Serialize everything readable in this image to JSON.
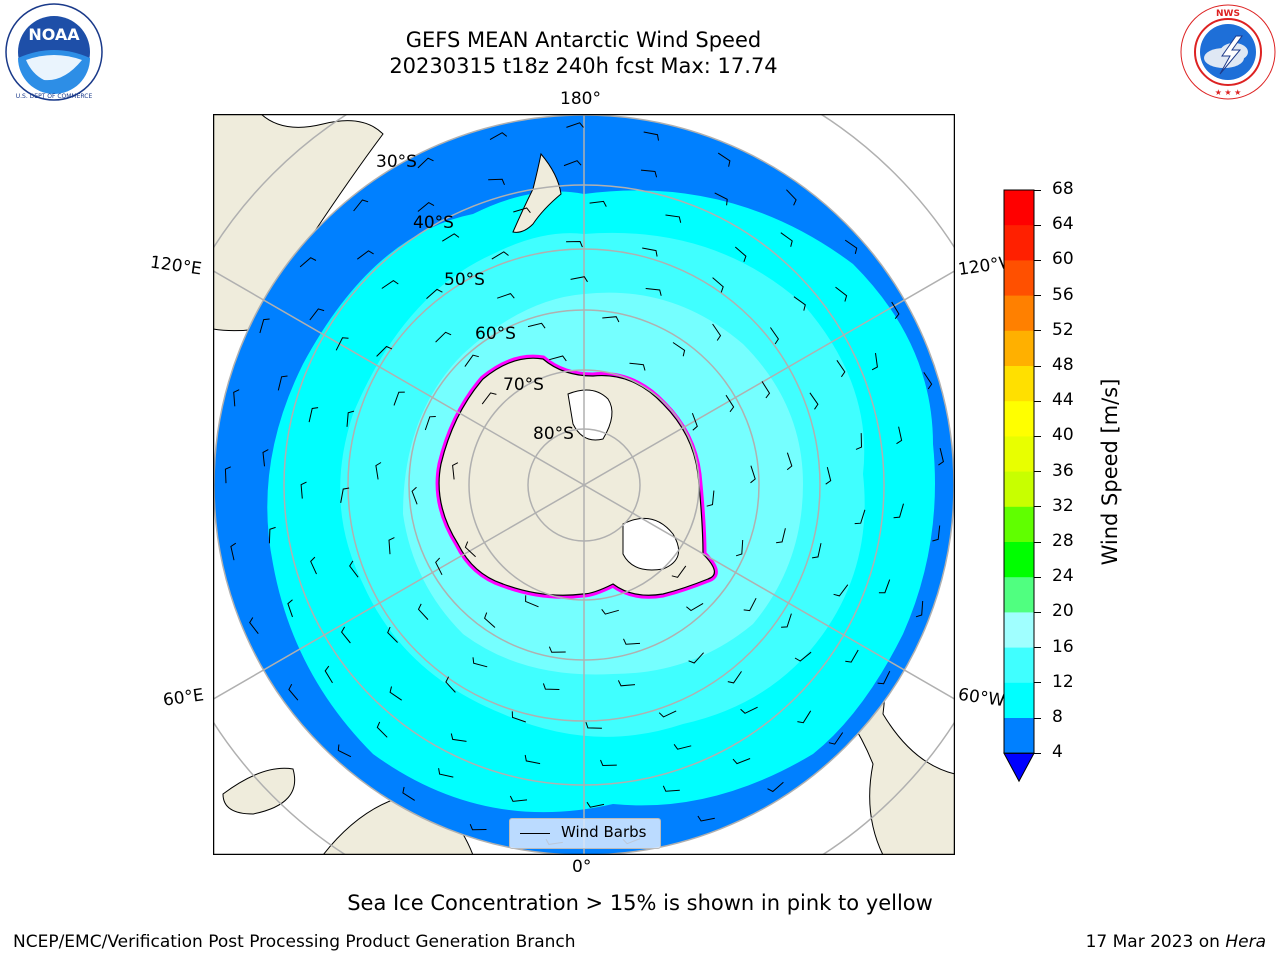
{
  "header": {
    "title_line1": "GEFS MEAN Antarctic Wind Speed",
    "title_line2": "20230315 t18z 240h fcst   Max: 17.74"
  },
  "logos": {
    "noaa": {
      "text": "NOAA",
      "ring_text": "NATIONAL OCEANIC AND ATMOSPHERIC ADMINISTRATION · U.S. DEPARTMENT OF COMMERCE"
    },
    "nws": {
      "ring_text": "NATIONAL WEATHER SERVICE"
    }
  },
  "map": {
    "projection": "south-polar-stereographic",
    "longitude_labels": {
      "top": "180°",
      "bottom": "0°",
      "upper_left": "120°E",
      "upper_right": "120°W",
      "lower_left": "60°E",
      "lower_right": "60°W"
    },
    "latitude_labels": [
      "30°S",
      "40°S",
      "50°S",
      "60°S",
      "70°S",
      "80°S"
    ],
    "colors": {
      "land": "#efecdc",
      "ice_sheet": "#efecdc",
      "wind_4_8": "#0080ff",
      "wind_8_12": "#00ffff",
      "wind_12_16": "#40ffff",
      "wind_16_20": "#a0ffff",
      "sea_ice_low": "#ff00ff",
      "sea_ice_high": "#ffcc00",
      "graticule": "#b0b0b0"
    }
  },
  "legend": {
    "label": "Wind Barbs"
  },
  "colorbar": {
    "label": "Wind Speed [m/s]",
    "ticks": [
      "68",
      "64",
      "60",
      "56",
      "52",
      "48",
      "44",
      "40",
      "36",
      "32",
      "28",
      "24",
      "20",
      "16",
      "12",
      "8",
      "4"
    ],
    "colors": [
      "#ff0000",
      "#ff2000",
      "#ff5000",
      "#ff8000",
      "#ffb000",
      "#ffe000",
      "#ffff00",
      "#e8ff00",
      "#c8ff00",
      "#60ff00",
      "#00ff00",
      "#50ff80",
      "#a0ffff",
      "#40ffff",
      "#00ffff",
      "#0080ff"
    ],
    "under_color": "#0000ff"
  },
  "footer": {
    "note": "Sea Ice Concentration > 15% is shown in pink to yellow",
    "left": "NCEP/EMC/Verification Post Processing Product Generation Branch",
    "date": "17 Mar 2023 on ",
    "machine": "Hera"
  }
}
